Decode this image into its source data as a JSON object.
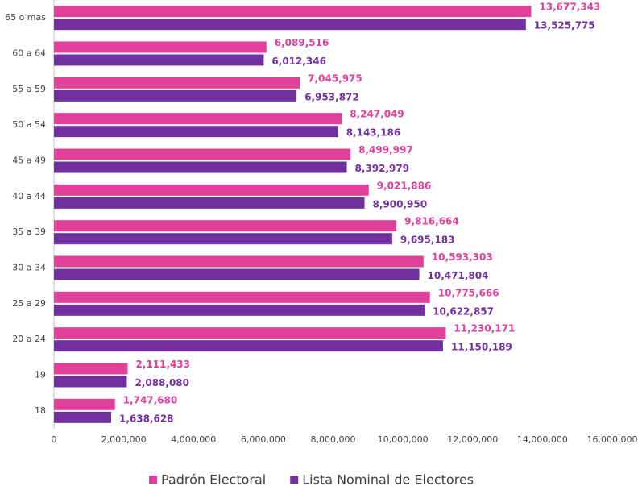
{
  "chart_data": {
    "type": "hbar",
    "orientation": "horizontal",
    "categories": [
      "65 o mas",
      "60 a 64",
      "55 a 59",
      "50 a 54",
      "45 a 49",
      "40 a 44",
      "35 a 39",
      "30 a 34",
      "25 a 29",
      "20 a 24",
      "19",
      "18"
    ],
    "series": [
      {
        "name": "Padrón Electoral",
        "color": "#e0409a",
        "values": [
          13677343,
          6089516,
          7045975,
          8247049,
          8499997,
          9021886,
          9816664,
          10593303,
          10775666,
          11230171,
          2111433,
          1747680
        ],
        "value_labels": [
          "13,677,343",
          "6,089,516",
          "7,045,975",
          "8,247,049",
          "8,499,997",
          "9,021,886",
          "9,816,664",
          "10,593,303",
          "10,775,666",
          "11,230,171",
          "2,111,433",
          "1,747,680"
        ]
      },
      {
        "name": "Lista Nominal de Electores",
        "color": "#7030a0",
        "values": [
          13525775,
          6012346,
          6953872,
          8143186,
          8392979,
          8900950,
          9695183,
          10471804,
          10622857,
          11150189,
          2088080,
          1638628
        ],
        "value_labels": [
          "13,525,775",
          "6,012,346",
          "6,953,872",
          "8,143,186",
          "8,392,979",
          "8,900,950",
          "9,695,183",
          "10,471,804",
          "10,622,857",
          "11,150,189",
          "2,088,080",
          "1,638,628"
        ]
      }
    ],
    "xlim": [
      0,
      16000000
    ],
    "xticks": [
      0,
      {
        "value": 2000000,
        "label": "2,000,000"
      },
      {
        "value": 4000000,
        "label": "4,000,000"
      },
      {
        "value": 6000000,
        "label": "6,000,000"
      },
      {
        "value": 8000000,
        "label": "8,000,000"
      },
      {
        "value": 10000000,
        "label": "10,000,000"
      },
      {
        "value": 12000000,
        "label": "12,000,000"
      },
      {
        "value": 14000000,
        "label": "14,000,000"
      },
      {
        "value": 16000000,
        "label": "16,000,000"
      }
    ],
    "grid": false,
    "legend": "bottom"
  }
}
